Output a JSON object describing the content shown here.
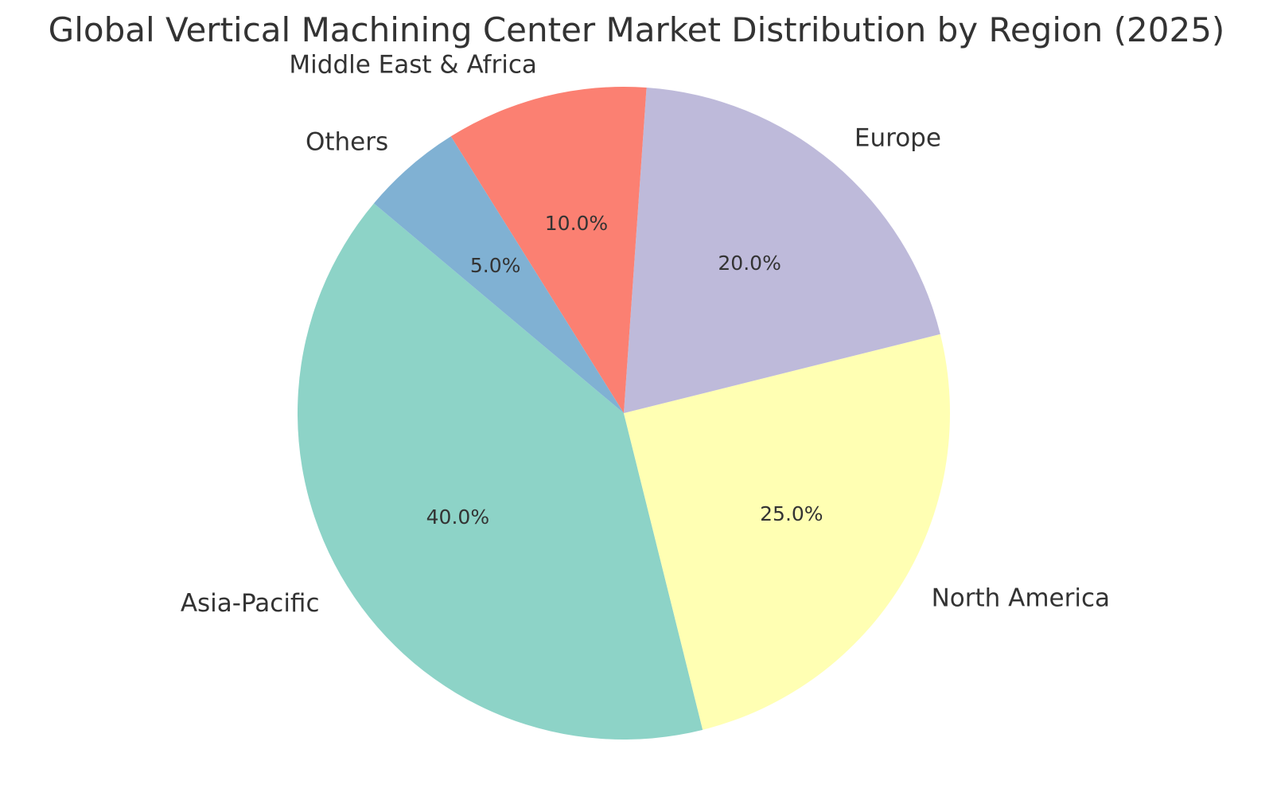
{
  "chart_data": {
    "type": "pie",
    "title": "Global Vertical Machining Center Market Distribution by Region (2025)",
    "start_angle_deg": 140,
    "direction": "counterclockwise",
    "slices": [
      {
        "label": "Asia-Pacific",
        "value": 40.0,
        "pct_label": "40.0%",
        "color": "#8DD3C7"
      },
      {
        "label": "North America",
        "value": 25.0,
        "pct_label": "25.0%",
        "color": "#FFFFB3"
      },
      {
        "label": "Europe",
        "value": 20.0,
        "pct_label": "20.0%",
        "color": "#BEBADA"
      },
      {
        "label": "Middle East & Africa",
        "value": 10.0,
        "pct_label": "10.0%",
        "color": "#FB8072"
      },
      {
        "label": "Others",
        "value": 5.0,
        "pct_label": "5.0%",
        "color": "#80B1D3"
      }
    ]
  }
}
